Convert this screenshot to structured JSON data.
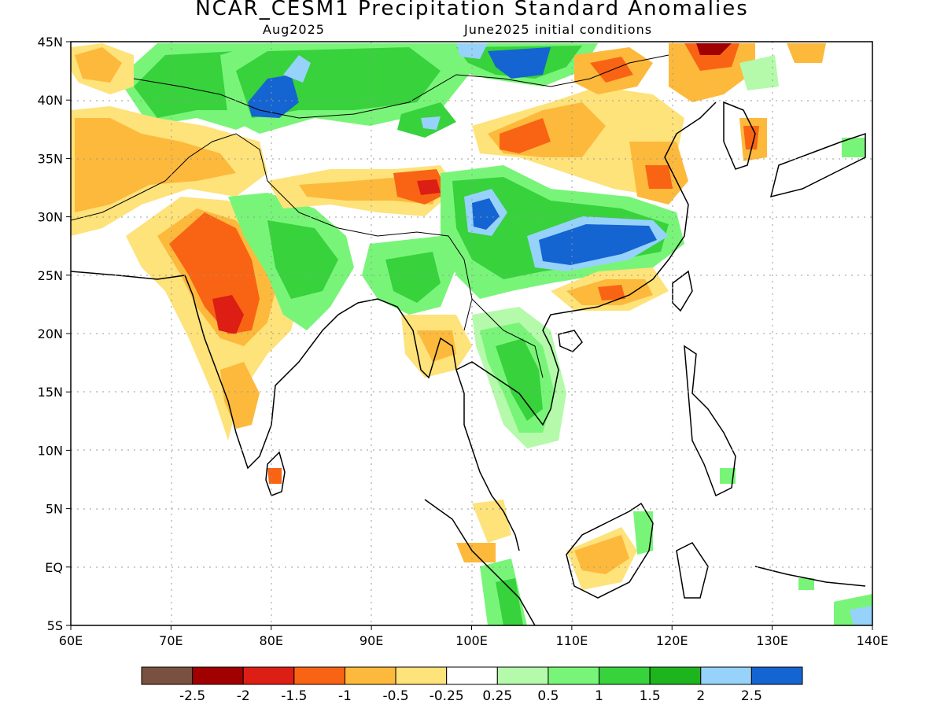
{
  "title": "NCAR_CESM1 Precipitation Standard Anomalies",
  "subtitle_left": "Aug2025",
  "subtitle_right": "June2025 initial conditions",
  "lat_labels": [
    "45N",
    "40N",
    "35N",
    "30N",
    "25N",
    "20N",
    "15N",
    "10N",
    "5N",
    "EQ",
    "5S"
  ],
  "lon_labels": [
    "60E",
    "70E",
    "80E",
    "90E",
    "100E",
    "110E",
    "120E",
    "130E",
    "140E"
  ],
  "colorbar": {
    "colors": [
      "#7a5040",
      "#a00000",
      "#dc1e14",
      "#f86414",
      "#fdb93c",
      "#fee27a",
      "#ffffff",
      "#b4faaa",
      "#78f578",
      "#37d23c",
      "#1eb41e",
      "#96d2fa",
      "#1464d2"
    ],
    "labels": [
      "-2.5",
      "-2",
      "-1.5",
      "-1",
      "-0.5",
      "-0.25",
      "0.25",
      "0.5",
      "1",
      "1.5",
      "2",
      "2.5"
    ]
  },
  "anomaly_colors": {
    "wet_1": "#b4faaa",
    "wet_2": "#78f578",
    "wet_3": "#37d23c",
    "wet_4": "#1eb41e",
    "wet_5": "#96d2fa",
    "wet_6": "#1464d2",
    "dry_1": "#fee27a",
    "dry_2": "#fdb93c",
    "dry_3": "#f86414",
    "dry_4": "#dc1e14",
    "dry_5": "#a00000"
  }
}
